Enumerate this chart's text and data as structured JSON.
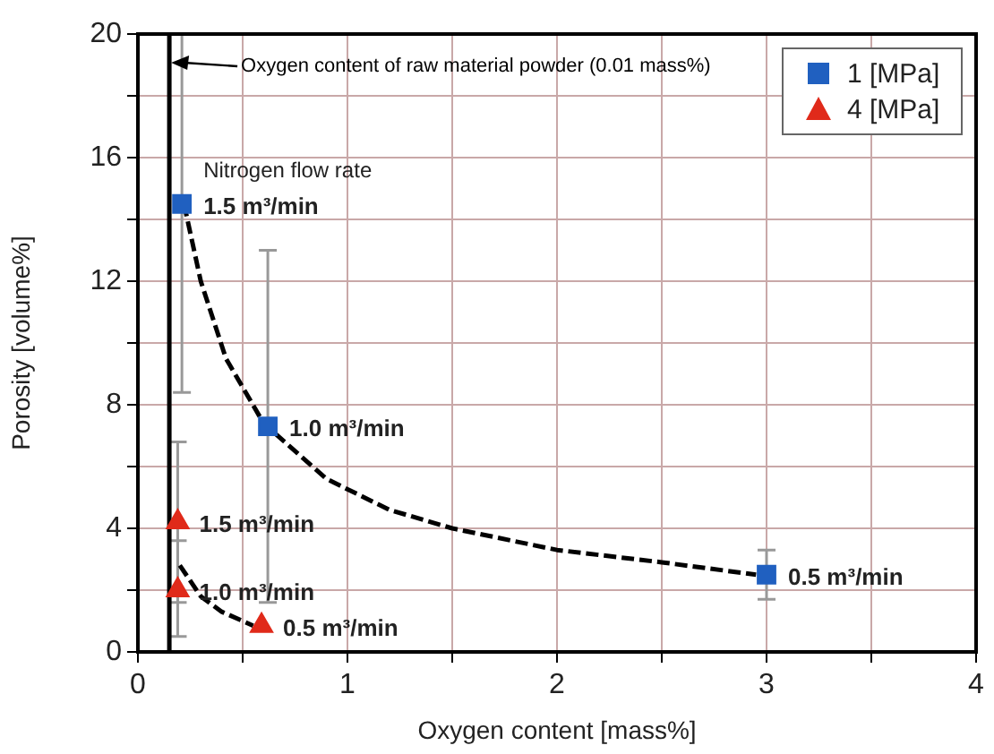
{
  "chart_data": {
    "type": "scatter",
    "xlabel": "Oxygen content [mass%]",
    "ylabel": "Porosity [volume%]",
    "xlim": [
      0,
      4
    ],
    "xticks": [
      0,
      {
        "value": 0.5,
        "label": null
      },
      1,
      {
        "value": 1.5,
        "label": null
      },
      2,
      {
        "value": 2.5,
        "label": null
      },
      3,
      {
        "value": 3.5,
        "label": null
      },
      4
    ],
    "ylim": [
      0,
      20
    ],
    "yticks": [
      0,
      {
        "value": 2,
        "label": null
      },
      4,
      {
        "value": 6,
        "label": null
      },
      8,
      {
        "value": 10,
        "label": null
      },
      12,
      {
        "value": 14,
        "label": null
      },
      16,
      {
        "value": 18,
        "label": null
      },
      20
    ],
    "grid": true,
    "legend": "top right",
    "series": [
      {
        "name": "1 [MPa]",
        "color": "#2060c0",
        "marker": "square",
        "x": [
          0.21,
          0.62,
          3.0
        ],
        "values": [
          14.5,
          7.3,
          2.5
        ],
        "errors": [
          [
            8.4,
            20
          ],
          [
            1.6,
            13.0
          ],
          [
            1.7,
            3.3
          ]
        ]
      },
      {
        "name": "4 [MPa]",
        "color": "#e02a1a",
        "marker": "triangle",
        "x": [
          0.19,
          0.19,
          0.59
        ],
        "values": [
          4.2,
          2.0,
          0.85
        ],
        "errors": [
          2.6,
          [
            0.5,
            3.6
          ],
          null
        ]
      },
      {
        "type": "line",
        "color": "#000000",
        "marker": "none",
        "line_style": "dashed",
        "x": [
          0.22,
          0.3,
          0.42,
          0.6,
          0.9,
          1.2,
          1.5,
          2.0,
          2.5,
          2.95
        ],
        "values": [
          14.5,
          12,
          9.5,
          7.4,
          5.6,
          4.6,
          4.0,
          3.3,
          2.9,
          2.5
        ]
      },
      {
        "type": "line",
        "color": "#000000",
        "marker": "none",
        "line_style": "dashed",
        "x": [
          0.2,
          0.3,
          0.4,
          0.55
        ],
        "values": [
          2.8,
          1.8,
          1.3,
          0.85
        ]
      }
    ],
    "ref_lines": [
      {
        "axis": "x",
        "value": 0.15,
        "label": "Oxygen content of raw material powder (0.01 mass%)",
        "color": "#000000"
      }
    ],
    "annotations": [
      {
        "text": "1.5 m³/min",
        "x": 0.21,
        "y": 14.5
      },
      {
        "text": "Nitrogen flow rate",
        "x": 0.21,
        "y": 14.5
      },
      {
        "text": "1.0 m³/min",
        "x": 0.62,
        "y": 7.3
      },
      {
        "text": "0.5 m³/min",
        "x": 3.0,
        "y": 2.5
      },
      {
        "text": "1.5 m³/min",
        "x": 0.19,
        "y": 4.2
      },
      {
        "text": "1.0 m³/min",
        "x": 0.19,
        "y": 2.0
      },
      {
        "text": "0.5 m³/min",
        "x": 0.59,
        "y": 0.85
      }
    ]
  }
}
